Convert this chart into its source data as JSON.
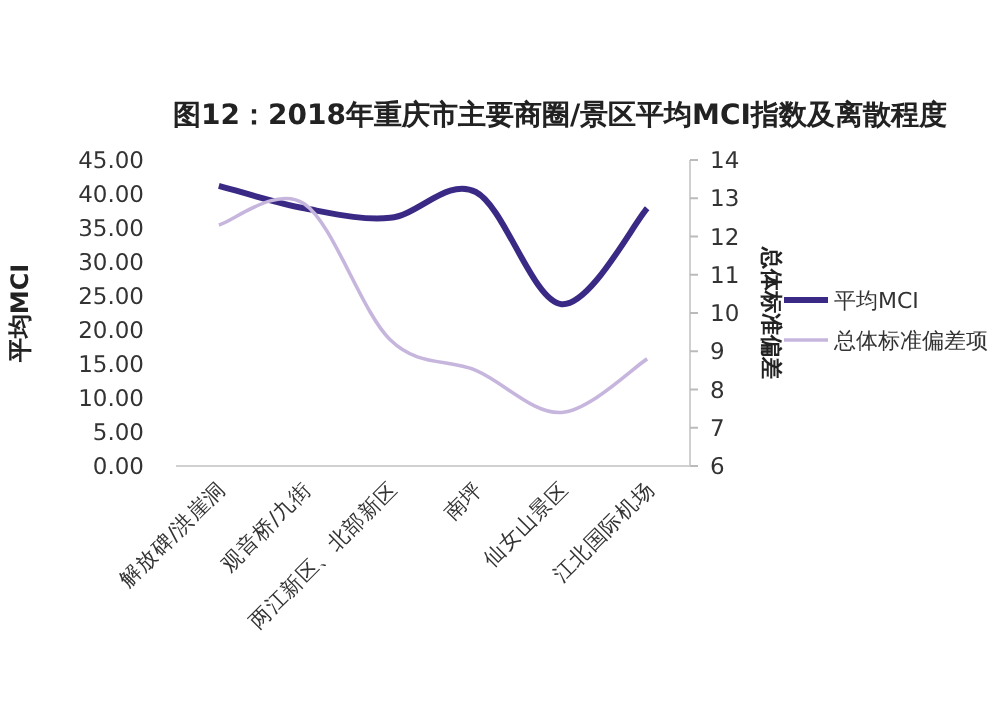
{
  "chart_data": {
    "type": "line",
    "title": "图12：2018年重庆市主要商圈/景区平均MCI指数及离散程度",
    "ylabel": "平均MCI",
    "y2label": "总体标准偏差",
    "categories": [
      "解放碑/洪崖洞",
      "观音桥/九街",
      "两江新区、北部新区",
      "南坪",
      "仙女山景区",
      "江北国际机场"
    ],
    "series": [
      {
        "name": "平均MCI",
        "color": "#3b2a85",
        "values": [
          41.2,
          37.9,
          36.5,
          40.3,
          23.8,
          37.9
        ]
      },
      {
        "name": "总体标准偏差项",
        "color": "#c6b6de",
        "axis": "y2",
        "values": [
          12.3,
          12.85,
          9.3,
          8.5,
          7.4,
          8.8
        ]
      }
    ],
    "ylim": [
      0,
      45
    ],
    "yticks": [
      {
        "value": 0,
        "label": "0.00"
      },
      {
        "value": 5,
        "label": "5.00"
      },
      {
        "value": 10,
        "label": "10.00"
      },
      {
        "value": 15,
        "label": "15.00"
      },
      {
        "value": 20,
        "label": "20.00"
      },
      {
        "value": 25,
        "label": "25.00"
      },
      {
        "value": 30,
        "label": "30.00"
      },
      {
        "value": 35,
        "label": "35.00"
      },
      {
        "value": 40,
        "label": "40.00"
      },
      {
        "value": 45,
        "label": "45.00"
      }
    ],
    "y2lim": [
      6,
      14
    ],
    "y2ticks": [
      6,
      7,
      8,
      9,
      10,
      11,
      12,
      13,
      14
    ],
    "legend": "right",
    "grid": false,
    "marker": "none",
    "line_style": "solid"
  }
}
